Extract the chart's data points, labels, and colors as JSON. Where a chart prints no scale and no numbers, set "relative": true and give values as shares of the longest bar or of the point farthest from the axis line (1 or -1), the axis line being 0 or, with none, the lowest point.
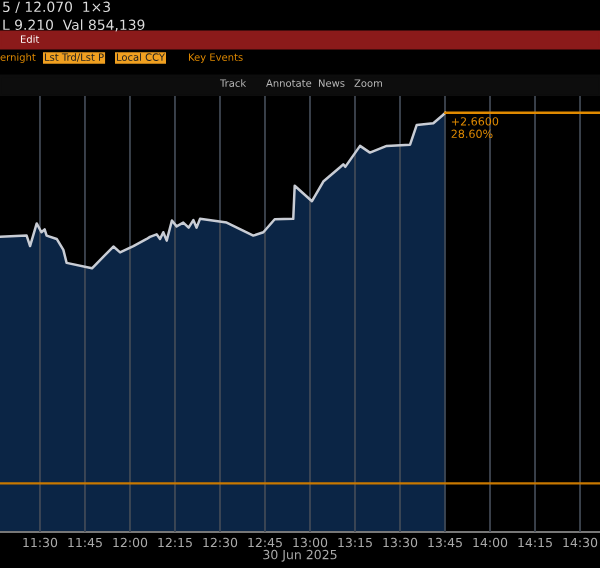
{
  "chart_data": {
    "type": "area",
    "relative": true,
    "xlabel": "30 Jun 2025",
    "x": [
      11.278,
      11.426,
      11.445,
      11.482,
      11.508,
      11.526,
      11.537,
      11.593,
      11.63,
      11.648,
      11.789,
      11.908,
      11.945,
      12.019,
      12.093,
      12.111,
      12.148,
      12.167,
      12.185,
      12.204,
      12.233,
      12.259,
      12.296,
      12.326,
      12.352,
      12.37,
      12.389,
      12.537,
      12.685,
      12.741,
      12.804,
      12.907,
      12.915,
      13.011,
      13.074,
      13.167,
      13.185,
      13.196,
      13.278,
      13.333,
      13.426,
      13.556,
      13.593,
      13.685,
      13.737,
      13.752
    ],
    "series": [
      {
        "color": "#0b2545",
        "values": [
          0.704,
          0.707,
          0.682,
          0.736,
          0.715,
          0.722,
          0.707,
          0.699,
          0.673,
          0.642,
          0.629,
          0.681,
          0.667,
          0.682,
          0.699,
          0.704,
          0.71,
          0.699,
          0.715,
          0.695,
          0.743,
          0.729,
          0.738,
          0.726,
          0.744,
          0.726,
          0.747,
          0.738,
          0.707,
          0.715,
          0.746,
          0.747,
          0.826,
          0.789,
          0.836,
          0.87,
          0.877,
          0.871,
          0.921,
          0.905,
          0.921,
          0.924,
          0.971,
          0.975,
          0.994,
          1
        ]
      },
      {
        "type": "line",
        "color": "#e08a00",
        "x": [
          13.752,
          14.611
        ],
        "values": [
          1,
          1
        ]
      }
    ],
    "xlim": [
      11.278,
      14.611
    ],
    "xticks": [
      {
        "value": 11.5,
        "label": "11:30"
      },
      {
        "value": 11.75,
        "label": "11:45"
      },
      {
        "value": 12.0,
        "label": "12:00"
      },
      {
        "value": 12.25,
        "label": "12:15"
      },
      {
        "value": 12.5,
        "label": "12:30"
      },
      {
        "value": 12.75,
        "label": "12:45"
      },
      {
        "value": 13.0,
        "label": "13:00"
      },
      {
        "value": 13.25,
        "label": "13:15"
      },
      {
        "value": 13.5,
        "label": "13:30"
      },
      {
        "value": 13.75,
        "label": "13:45"
      },
      {
        "value": 14.0,
        "label": "14:00"
      },
      {
        "value": 14.25,
        "label": "14:15"
      },
      {
        "value": 14.5,
        "label": "14:30"
      }
    ],
    "grid": "x",
    "ref_lines": [
      {
        "axis": "y",
        "value": 0.116,
        "color": "#c87800"
      }
    ],
    "annotations": [
      "5 / 12.070  1×3",
      "L 9.210  Val 854,139",
      "Edit",
      "ernight",
      "Lst Trd/Lst P",
      "Local CCY",
      "Key Events",
      "Track",
      "Annotate",
      "News",
      "Zoom",
      {
        "text": "+2.6600\n28.60%",
        "x": 13.752,
        "y": 1
      }
    ]
  }
}
